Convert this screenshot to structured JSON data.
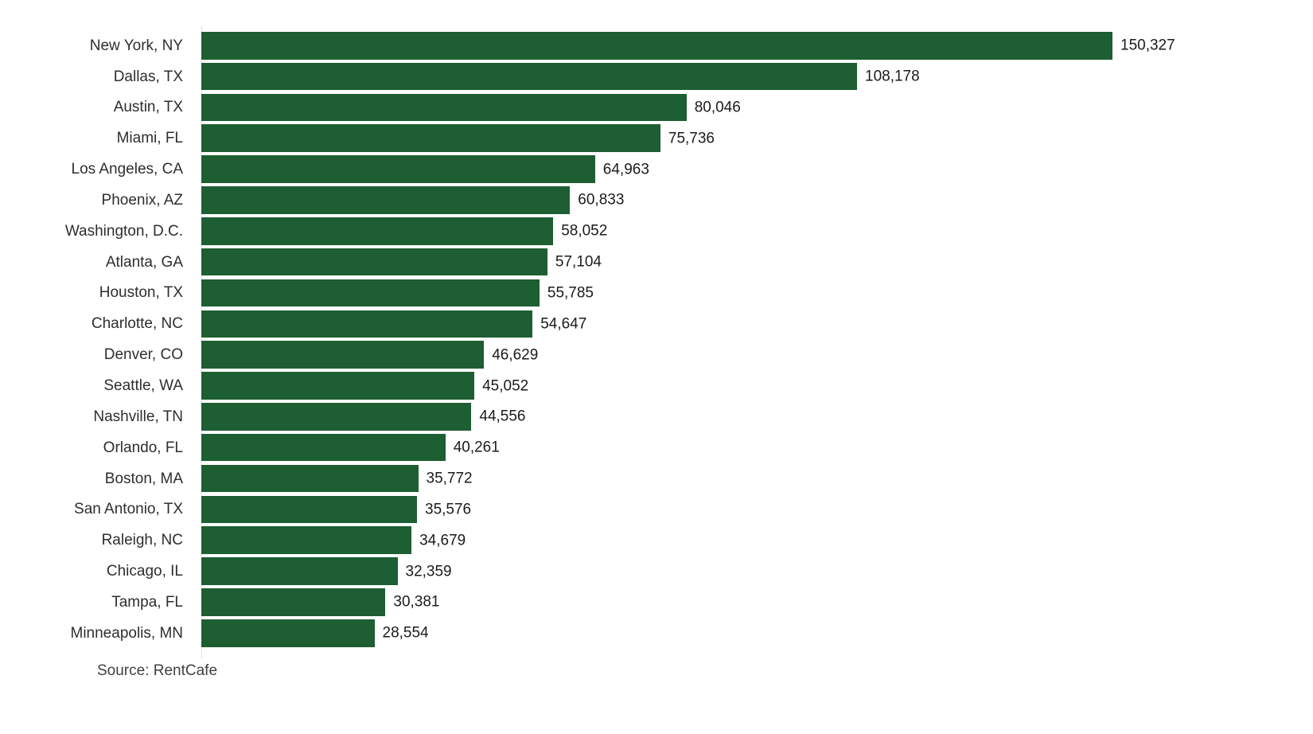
{
  "chart_data": {
    "type": "bar",
    "orientation": "horizontal",
    "title": "",
    "xlabel": "",
    "ylabel": "",
    "xlim": [
      0,
      150327
    ],
    "grid": false,
    "legend": false,
    "bar_color": "#1d5e32",
    "axis_line_color": "#e4e4e4",
    "label_color": "#2e2e2e",
    "value_color": "#1b1b1b",
    "categories": [
      "New York, NY",
      "Dallas, TX",
      "Austin, TX",
      "Miami, FL",
      "Los Angeles, CA",
      "Phoenix, AZ",
      "Washington, D.C.",
      "Atlanta, GA",
      "Houston, TX",
      "Charlotte, NC",
      "Denver, CO",
      "Seattle, WA",
      "Nashville, TN",
      "Orlando, FL",
      "Boston, MA",
      "San Antonio, TX",
      "Raleigh, NC",
      "Chicago, IL",
      "Tampa, FL",
      "Minneapolis, MN"
    ],
    "values": [
      150327,
      108178,
      80046,
      75736,
      64963,
      60833,
      58052,
      57104,
      55785,
      54647,
      46629,
      45052,
      44556,
      40261,
      35772,
      35576,
      34679,
      32359,
      30381,
      28554
    ],
    "value_labels": [
      "150,327",
      "108,178",
      "80,046",
      "75,736",
      "64,963",
      "60,833",
      "58,052",
      "57,104",
      "55,785",
      "54,647",
      "46,629",
      "45,052",
      "44,556",
      "40,261",
      "35,772",
      "35,576",
      "34,679",
      "32,359",
      "30,381",
      "28,554"
    ]
  },
  "footer": {
    "source_label": "Source: RentCafe"
  }
}
